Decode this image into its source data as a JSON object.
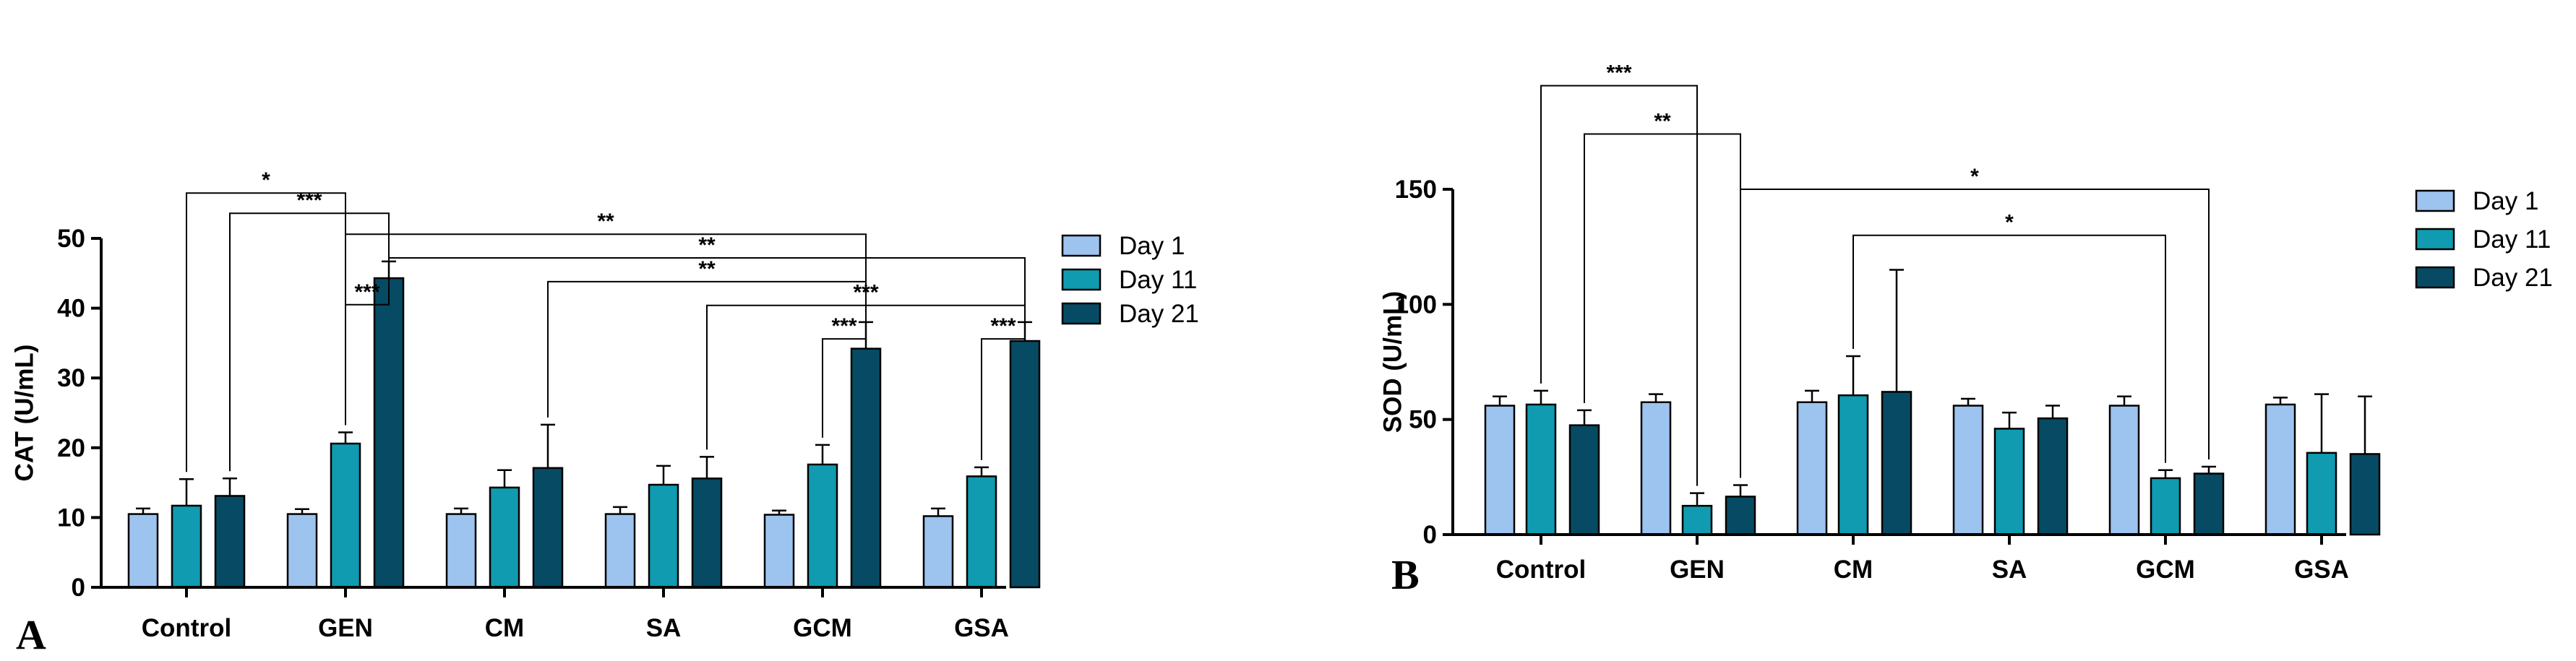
{
  "chart_data": [
    {
      "panel": "A",
      "type": "bar",
      "ylabel": "CAT (U/mL)",
      "xlabel": "",
      "ylim": [
        0,
        50
      ],
      "yticks": [
        0,
        10,
        20,
        30,
        40,
        50
      ],
      "categories": [
        "Control",
        "GEN",
        "CM",
        "SA",
        "GCM",
        "GSA"
      ],
      "series": [
        {
          "name": "Day 1",
          "color": "#9dc3ef",
          "values": [
            10.5,
            10.5,
            10.5,
            10.5,
            10.4,
            10.2
          ],
          "errors": [
            0.8,
            0.7,
            0.8,
            1.0,
            0.6,
            1.1
          ]
        },
        {
          "name": "Day 11",
          "color": "#109bb0",
          "values": [
            11.7,
            20.6,
            14.3,
            14.7,
            17.6,
            15.9
          ],
          "errors": [
            3.8,
            1.6,
            2.5,
            2.7,
            2.8,
            1.3
          ]
        },
        {
          "name": "Day 21",
          "color": "#064b63",
          "values": [
            13.1,
            44.3,
            17.1,
            15.6,
            34.2,
            35.3
          ],
          "errors": [
            2.5,
            2.4,
            6.2,
            3.1,
            3.8,
            2.7
          ]
        }
      ],
      "annotations": [
        {
          "label": "*",
          "from_cat": 0,
          "from_series": 1,
          "to_cat": 1,
          "to_series": 1,
          "y": 56.5
        },
        {
          "label": "***",
          "from_cat": 0,
          "from_series": 2,
          "to_cat": 1,
          "to_series": 2,
          "y": 53.6
        },
        {
          "label": "**",
          "from_cat": 1,
          "from_series": 1,
          "to_cat": 4,
          "to_series": 2,
          "y": 50.6
        },
        {
          "label": "**",
          "from_cat": 1,
          "from_series": 2,
          "to_cat": 5,
          "to_series": 2,
          "y": 47.2
        },
        {
          "label": "**",
          "from_cat": 2,
          "from_series": 2,
          "to_cat": 4,
          "to_series": 2,
          "y": 43.8
        },
        {
          "label": "***",
          "from_cat": 1,
          "from_series": 1,
          "to_cat": 1,
          "to_series": 2,
          "y": 40.5
        },
        {
          "label": "***",
          "from_cat": 3,
          "from_series": 2,
          "to_cat": 5,
          "to_series": 2,
          "y": 40.4
        },
        {
          "label": "***",
          "from_cat": 4,
          "from_series": 1,
          "to_cat": 4,
          "to_series": 2,
          "y": 35.6
        },
        {
          "label": "***",
          "from_cat": 5,
          "from_series": 1,
          "to_cat": 5,
          "to_series": 2,
          "y": 35.6
        }
      ],
      "legend": {
        "entries": [
          "Day 1",
          "Day 11",
          "Day 21"
        ],
        "placement": "right"
      }
    },
    {
      "panel": "B",
      "type": "bar",
      "ylabel": "SOD (U/mL)",
      "xlabel": "",
      "ylim": [
        0,
        150
      ],
      "yticks": [
        0,
        50,
        100,
        150
      ],
      "categories": [
        "Control",
        "GEN",
        "CM",
        "SA",
        "GCM",
        "GSA"
      ],
      "series": [
        {
          "name": "Day 1",
          "color": "#9dc3ef",
          "values": [
            56.0,
            57.5,
            57.5,
            56.0,
            56.0,
            56.5
          ],
          "errors": [
            4.0,
            3.5,
            5.0,
            3.0,
            4.0,
            3.0
          ]
        },
        {
          "name": "Day 11",
          "color": "#109bb0",
          "values": [
            56.5,
            12.5,
            60.5,
            46.0,
            24.5,
            35.5
          ],
          "errors": [
            6.0,
            5.5,
            17.0,
            7.0,
            3.5,
            25.5
          ]
        },
        {
          "name": "Day 21",
          "color": "#064b63",
          "values": [
            47.5,
            16.5,
            62.0,
            50.5,
            26.5,
            35.0
          ],
          "errors": [
            6.5,
            5.0,
            53.0,
            5.5,
            3.0,
            25.0
          ]
        }
      ],
      "annotations": [
        {
          "label": "***",
          "from_cat": 0,
          "from_series": 1,
          "to_cat": 1,
          "to_series": 1,
          "y": 195
        },
        {
          "label": "**",
          "from_cat": 0,
          "from_series": 2,
          "to_cat": 1,
          "to_series": 2,
          "y": 174
        },
        {
          "label": "*",
          "from_cat": 1,
          "from_series": 2,
          "to_cat": 4,
          "to_series": 2,
          "y": 150
        },
        {
          "label": "*",
          "from_cat": 2,
          "from_series": 1,
          "to_cat": 4,
          "to_series": 1,
          "y": 130
        }
      ],
      "legend": {
        "entries": [
          "Day 1",
          "Day 11",
          "Day 21"
        ],
        "placement": "right"
      }
    }
  ]
}
